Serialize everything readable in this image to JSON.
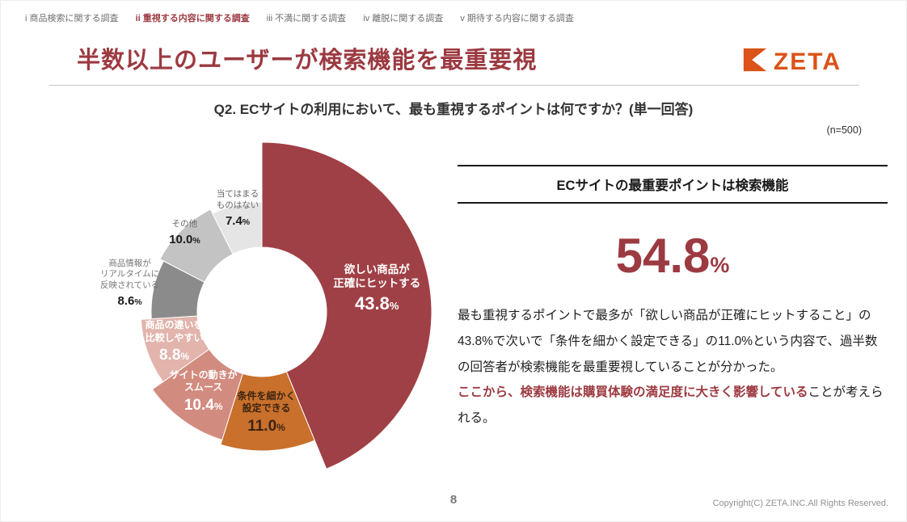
{
  "nav": {
    "items": [
      {
        "label": "i 商品検索に関する調査",
        "active": false
      },
      {
        "label": "ii 重視する内容に関する調査",
        "active": true
      },
      {
        "label": "iii 不満に関する調査",
        "active": false
      },
      {
        "label": "iv 離脱に関する調査",
        "active": false
      },
      {
        "label": "v 期待する内容に関する調査",
        "active": false
      }
    ]
  },
  "header": {
    "title": "半数以上のユーザーが検索機能を最重要視"
  },
  "logo": {
    "text": "ZETA",
    "icon": "zeta-mark-icon",
    "color": "#db5318"
  },
  "question": {
    "text": "Q2. ECサイトの利用において、最も重視するポイントは何ですか？(単一回答)",
    "n_label": "(n=500)"
  },
  "panel": {
    "header": "ECサイトの最重要ポイントは検索機能",
    "stat_value": "54.8",
    "stat_unit": "%",
    "body": {
      "s1": "最も重視するポイントで最多が「欲しい商品が正確にヒットすること」の43.8%で次いで「条件を細かく設定できる」の11.0%という内容で、過半数の回答者が検索機能を最重要視していることが分かった。",
      "s2": "ここから、検索機能は購買体験の満足度に大きく影響している",
      "s3": "ことが考えられる。"
    }
  },
  "footer": {
    "page_number": "8",
    "copyright": "Copyright(C) ZETA.INC.All Rights Reserved."
  },
  "colors": {
    "accent_red": "#9c3a41",
    "logo_orange": "#db5318"
  },
  "chart_data": {
    "type": "pie",
    "subtype": "donut",
    "title": "Q2. ECサイトの利用において、最も重視するポイントは何ですか？(単一回答)",
    "sample_size": "(n=500)",
    "unit": "%",
    "direction": "clockwise",
    "start_angle": "top",
    "inner_radius": 80,
    "slices": [
      {
        "label": "欲しい商品が正確にヒットする",
        "value": 43.8,
        "color": "#9f4046",
        "text_color": "#ffffff",
        "label_lines": [
          "欲しい商品が",
          "正確にヒットする"
        ],
        "outer_radius": 210,
        "label_pos": "inside",
        "emphasized": true
      },
      {
        "label": "条件を細かく設定できる",
        "value": 11.0,
        "color": "#c8702c",
        "text_color": "#3d2410",
        "label_lines": [
          "条件を細かく",
          "設定できる"
        ],
        "outer_radius": 172,
        "label_pos": "inside",
        "emphasized": false
      },
      {
        "label": "サイトの動きがスムース",
        "value": 10.4,
        "color": "#d28b7f",
        "text_color": "#ffffff",
        "label_lines": [
          "サイトの動きが",
          "スムース"
        ],
        "outer_radius": 166,
        "label_pos": "inside",
        "emphasized": false
      },
      {
        "label": "商品の違いを比較しやすい",
        "value": 8.8,
        "color": "#e2b4ac",
        "text_color": "#ffffff",
        "label_lines": [
          "商品の違いを",
          "比較しやすい"
        ],
        "outer_radius": 150,
        "label_pos": "inside",
        "emphasized": false
      },
      {
        "label": "商品情報がリアルタイムに反映されている",
        "value": 8.6,
        "color": "#8b8b8b",
        "text_color": "#777777",
        "label_lines": [
          "商品情報が",
          "リアルタイムに",
          "反映されている"
        ],
        "outer_radius": 137,
        "label_pos": "outside",
        "emphasized": false
      },
      {
        "label": "その他",
        "value": 10.0,
        "color": "#c3c3c3",
        "text_color": "#666666",
        "label_lines": [
          "その他"
        ],
        "outer_radius": 142,
        "label_pos": "edge",
        "emphasized": false
      },
      {
        "label": "当てはまるものはない",
        "value": 7.4,
        "color": "#e5e5e5",
        "text_color": "#666666",
        "label_lines": [
          "当てはまる",
          "ものはない"
        ],
        "outer_radius": 136,
        "label_pos": "edge",
        "emphasized": false
      }
    ]
  }
}
